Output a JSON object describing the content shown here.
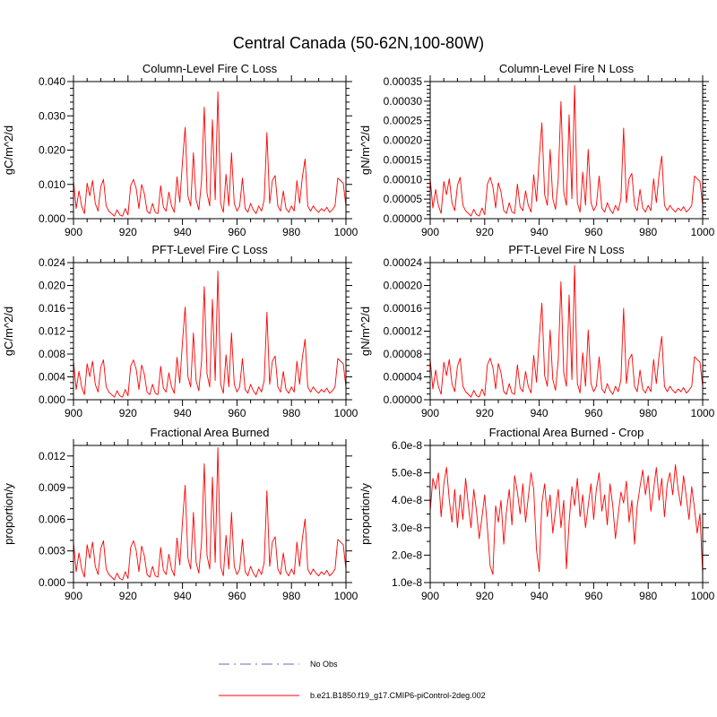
{
  "page_title": "Central Canada (50-62N,100-80W)",
  "charts_common": {
    "x_start": 900,
    "x_step": 1,
    "xlim": [
      900,
      1000
    ],
    "xticks": [
      900,
      920,
      940,
      960,
      980,
      1000
    ],
    "x_minor_step": 5,
    "line_color": "#ff0000",
    "series_name": "b.e21.B1850.f19_g17.CMIP6-piControl-2deg.002"
  },
  "chart_data": [
    {
      "type": "line",
      "title": "Column-Level Fire C Loss",
      "ylabel": "gC/m^2/d",
      "ylim": [
        0,
        0.04
      ],
      "yticks": [
        0,
        0.01,
        0.02,
        0.03,
        0.04
      ],
      "ytick_labels": [
        "0.000",
        "0.010",
        "0.020",
        "0.030",
        "0.040"
      ],
      "y_minor_step": 0.002,
      "series": {
        "shape_ref": "fire_normalized",
        "scale": 0.037
      }
    },
    {
      "type": "line",
      "title": "Column-Level Fire N Loss",
      "ylabel": "gN/m^2/d",
      "ylim": [
        0,
        0.00035
      ],
      "yticks": [
        0,
        5e-05,
        0.0001,
        0.00015,
        0.0002,
        0.00025,
        0.0003,
        0.00035
      ],
      "ytick_labels": [
        "0.00000",
        "0.00005",
        "0.00010",
        "0.00015",
        "0.00020",
        "0.00025",
        "0.00030",
        "0.00035"
      ],
      "y_minor_step": 1e-05,
      "series": {
        "shape_ref": "fire_normalized",
        "scale": 0.00034
      }
    },
    {
      "type": "line",
      "title": "PFT-Level Fire C Loss",
      "ylabel": "gC/m^2/d",
      "ylim": [
        0,
        0.024
      ],
      "yticks": [
        0,
        0.004,
        0.008,
        0.012,
        0.016,
        0.02,
        0.024
      ],
      "ytick_labels": [
        "0.000",
        "0.004",
        "0.008",
        "0.012",
        "0.016",
        "0.020",
        "0.024"
      ],
      "y_minor_step": 0.001,
      "series": {
        "shape_ref": "fire_normalized",
        "scale": 0.0225
      }
    },
    {
      "type": "line",
      "title": "PFT-Level Fire N Loss",
      "ylabel": "gN/m^2/d",
      "ylim": [
        0,
        0.00024
      ],
      "yticks": [
        0,
        4e-05,
        8e-05,
        0.00012,
        0.00016,
        0.0002,
        0.00024
      ],
      "ytick_labels": [
        "0.00000",
        "0.00004",
        "0.00008",
        "0.00012",
        "0.00016",
        "0.00020",
        "0.00024"
      ],
      "y_minor_step": 1e-05,
      "series": {
        "shape_ref": "fire_normalized",
        "scale": 0.000235
      }
    },
    {
      "type": "line",
      "title": "Fractional Area Burned",
      "ylabel": "proportion/y",
      "ylim": [
        0,
        0.013
      ],
      "yticks": [
        0,
        0.003,
        0.006,
        0.009,
        0.012
      ],
      "ytick_labels": [
        "0.000",
        "0.003",
        "0.006",
        "0.009",
        "0.012"
      ],
      "y_minor_step": 0.001,
      "series": {
        "shape_ref": "fire_normalized",
        "scale": 0.0128
      }
    },
    {
      "type": "line",
      "title": "Fractional Area Burned - Crop",
      "ylabel": "proportion/y",
      "ylim": [
        1e-08,
        6e-08
      ],
      "yticks": [
        1e-08,
        2e-08,
        3e-08,
        4e-08,
        5e-08,
        6e-08
      ],
      "ytick_labels": [
        "1.0e-8",
        "2.0e-8",
        "3.0e-8",
        "4.0e-8",
        "5.0e-8",
        "6.0e-8"
      ],
      "y_minor_step": 5e-09,
      "series": {
        "shape_ref": "crop_1e8",
        "scale": 1e-08
      }
    }
  ],
  "chart_shapes": {
    "fire_normalized": [
      0.3,
      0.08,
      0.22,
      0.1,
      0.04,
      0.28,
      0.18,
      0.3,
      0.12,
      0.06,
      0.25,
      0.31,
      0.1,
      0.06,
      0.04,
      0.02,
      0.07,
      0.03,
      0.02,
      0.08,
      0.03,
      0.26,
      0.31,
      0.24,
      0.08,
      0.27,
      0.2,
      0.06,
      0.04,
      0.12,
      0.05,
      0.04,
      0.26,
      0.09,
      0.06,
      0.21,
      0.1,
      0.05,
      0.33,
      0.13,
      0.45,
      0.72,
      0.18,
      0.1,
      0.52,
      0.15,
      0.07,
      0.3,
      0.88,
      0.2,
      0.1,
      0.78,
      0.15,
      1.0,
      0.12,
      0.05,
      0.35,
      0.1,
      0.52,
      0.12,
      0.06,
      0.1,
      0.32,
      0.08,
      0.05,
      0.12,
      0.07,
      0.04,
      0.1,
      0.06,
      0.15,
      0.68,
      0.12,
      0.3,
      0.34,
      0.1,
      0.06,
      0.22,
      0.08,
      0.05,
      0.1,
      0.06,
      0.3,
      0.12,
      0.33,
      0.47,
      0.1,
      0.06,
      0.1,
      0.07,
      0.05,
      0.08,
      0.06,
      0.09,
      0.05,
      0.07,
      0.1,
      0.32,
      0.3,
      0.28,
      0.1
    ],
    "crop_1e8": [
      3.6,
      4.8,
      4.4,
      5.0,
      3.4,
      4.6,
      5.2,
      4.0,
      3.2,
      4.4,
      3.0,
      4.2,
      3.3,
      4.8,
      3.8,
      3.0,
      4.4,
      3.6,
      2.6,
      3.4,
      4.2,
      3.0,
      1.6,
      1.3,
      3.8,
      3.2,
      4.0,
      2.4,
      3.6,
      4.4,
      3.1,
      4.9,
      4.3,
      3.5,
      4.6,
      3.2,
      4.1,
      5.0,
      4.4,
      2.2,
      1.4,
      3.9,
      4.6,
      3.4,
      4.2,
      2.8,
      3.6,
      4.4,
      3.0,
      4.0,
      1.5,
      3.2,
      4.5,
      3.8,
      4.8,
      3.4,
      4.2,
      3.0,
      3.8,
      4.6,
      3.3,
      4.4,
      5.0,
      3.6,
      4.2,
      3.1,
      4.6,
      3.8,
      2.6,
      3.5,
      4.3,
      3.9,
      4.7,
      3.2,
      4.0,
      2.4,
      3.8,
      4.5,
      5.1,
      4.2,
      4.9,
      3.6,
      4.4,
      5.2,
      4.0,
      4.8,
      3.4,
      4.6,
      5.0,
      4.2,
      5.3,
      4.4,
      3.8,
      4.9,
      4.1,
      3.3,
      4.5,
      3.7,
      2.8,
      3.5,
      1.3
    ]
  },
  "legend": {
    "items": [
      {
        "label": "No Obs",
        "color": "#9a9ad2",
        "style": "dashed"
      },
      {
        "label": "b.e21.B1850.f19_g17.CMIP6-piControl-2deg.002",
        "color": "#ff0000",
        "style": "solid"
      }
    ]
  }
}
